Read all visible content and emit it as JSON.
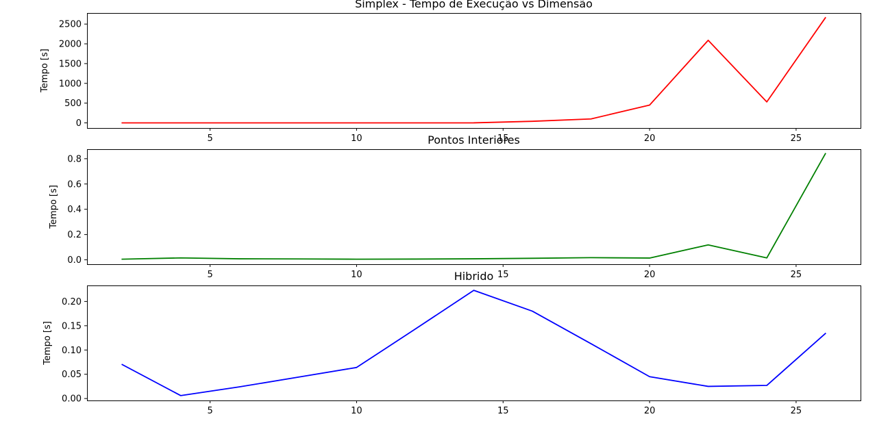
{
  "chart_data": [
    {
      "type": "line",
      "title": "Simplex - Tempo de Execução vs Dimensão",
      "xlabel": "",
      "ylabel": "Tempo [s]",
      "xlim": [
        0.8,
        27.2
      ],
      "ylim": [
        -130,
        2780
      ],
      "xticks": [
        5,
        10,
        15,
        20,
        25
      ],
      "yticks": [
        0,
        500,
        1000,
        1500,
        2000,
        2500
      ],
      "ytick_labels": [
        "0",
        "500",
        "1000",
        "1500",
        "2000",
        "2500"
      ],
      "grid": false,
      "series": [
        {
          "color": "#ff0000",
          "x": [
            2,
            4,
            6,
            8,
            10,
            12,
            14,
            16,
            18,
            20,
            22,
            24,
            26
          ],
          "y": [
            0,
            0,
            0,
            0,
            0,
            0,
            1,
            40,
            100,
            450,
            2090,
            530,
            2660
          ]
        }
      ]
    },
    {
      "type": "line",
      "title": "Pontos Interiores",
      "xlabel": "",
      "ylabel": "Tempo [s]",
      "xlim": [
        0.8,
        27.2
      ],
      "ylim": [
        -0.035,
        0.875
      ],
      "xticks": [
        5,
        10,
        15,
        20,
        25
      ],
      "yticks": [
        0.0,
        0.2,
        0.4,
        0.6,
        0.8
      ],
      "ytick_labels": [
        "0.0",
        "0.2",
        "0.4",
        "0.6",
        "0.8"
      ],
      "grid": false,
      "series": [
        {
          "color": "#008000",
          "x": [
            2,
            4,
            6,
            8,
            10,
            12,
            14,
            16,
            18,
            20,
            22,
            24,
            26
          ],
          "y": [
            0.005,
            0.015,
            0.008,
            0.007,
            0.005,
            0.006,
            0.008,
            0.012,
            0.017,
            0.014,
            0.118,
            0.015,
            0.84
          ]
        }
      ]
    },
    {
      "type": "line",
      "title": "Hibrido",
      "xlabel": "",
      "ylabel": "Tempo [s]",
      "xlim": [
        0.8,
        27.2
      ],
      "ylim": [
        -0.004,
        0.233
      ],
      "xticks": [
        5,
        10,
        15,
        20,
        25
      ],
      "yticks": [
        0.0,
        0.05,
        0.1,
        0.15,
        0.2
      ],
      "ytick_labels": [
        "0.00",
        "0.05",
        "0.10",
        "0.15",
        "0.20"
      ],
      "grid": false,
      "series": [
        {
          "color": "#0000ff",
          "x": [
            2,
            4,
            6,
            8,
            10,
            12,
            14,
            16,
            18,
            20,
            22,
            24,
            26
          ],
          "y": [
            0.07,
            0.006,
            0.024,
            0.044,
            0.064,
            0.143,
            0.223,
            0.18,
            0.113,
            0.045,
            0.025,
            0.027,
            0.134
          ]
        }
      ]
    }
  ]
}
